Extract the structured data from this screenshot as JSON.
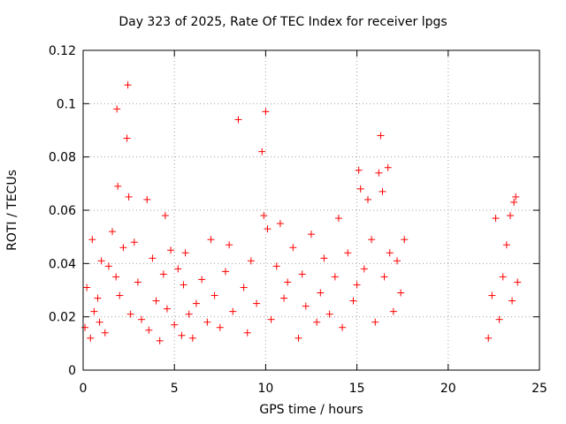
{
  "chart_data": {
    "type": "scatter",
    "title": "Day 323 of 2025, Rate Of TEC Index for receiver lpgs",
    "xlabel": "GPS time / hours",
    "ylabel": "ROTI / TECUs",
    "xlim": [
      0,
      25
    ],
    "ylim": [
      0,
      0.12
    ],
    "xticks": [
      "0",
      "5",
      "10",
      "15",
      "20",
      "25"
    ],
    "yticks": [
      "0",
      "0.02",
      "0.04",
      "0.06",
      "0.08",
      "0.1",
      "0.12"
    ],
    "grid": true,
    "marker": "+",
    "color": "#ff0000",
    "series": [
      {
        "name": "",
        "x": [
          0.1,
          0.2,
          0.4,
          0.5,
          0.6,
          0.8,
          0.9,
          1.0,
          1.2,
          1.4,
          1.6,
          1.8,
          1.85,
          1.9,
          2.0,
          2.2,
          2.4,
          2.45,
          2.5,
          2.6,
          2.8,
          3.0,
          3.2,
          3.5,
          3.6,
          3.8,
          4.0,
          4.2,
          4.4,
          4.5,
          4.6,
          4.8,
          5.0,
          5.2,
          5.4,
          5.5,
          5.6,
          5.8,
          6.0,
          6.2,
          6.5,
          6.8,
          7.0,
          7.2,
          7.5,
          7.8,
          8.0,
          8.2,
          8.5,
          8.8,
          9.0,
          9.2,
          9.5,
          9.8,
          9.9,
          10.0,
          10.1,
          10.3,
          10.6,
          10.8,
          11.0,
          11.2,
          11.5,
          11.8,
          12.0,
          12.2,
          12.5,
          12.8,
          13.0,
          13.2,
          13.5,
          13.8,
          14.0,
          14.2,
          14.5,
          14.8,
          15.0,
          15.1,
          15.2,
          15.4,
          15.6,
          15.8,
          16.0,
          16.2,
          16.3,
          16.4,
          16.5,
          16.7,
          16.8,
          17.0,
          17.2,
          17.4,
          17.6,
          22.2,
          22.4,
          22.6,
          22.8,
          23.0,
          23.2,
          23.4,
          23.5,
          23.6,
          23.7,
          23.8
        ],
        "y": [
          0.016,
          0.031,
          0.012,
          0.049,
          0.022,
          0.027,
          0.018,
          0.041,
          0.014,
          0.039,
          0.052,
          0.035,
          0.098,
          0.069,
          0.028,
          0.046,
          0.087,
          0.107,
          0.065,
          0.021,
          0.048,
          0.033,
          0.019,
          0.064,
          0.015,
          0.042,
          0.026,
          0.011,
          0.036,
          0.058,
          0.023,
          0.045,
          0.017,
          0.038,
          0.013,
          0.032,
          0.044,
          0.021,
          0.012,
          0.025,
          0.034,
          0.018,
          0.049,
          0.028,
          0.016,
          0.037,
          0.047,
          0.022,
          0.094,
          0.031,
          0.014,
          0.041,
          0.025,
          0.082,
          0.058,
          0.097,
          0.053,
          0.019,
          0.039,
          0.055,
          0.027,
          0.033,
          0.046,
          0.012,
          0.036,
          0.024,
          0.051,
          0.018,
          0.029,
          0.042,
          0.021,
          0.035,
          0.057,
          0.016,
          0.044,
          0.026,
          0.032,
          0.075,
          0.068,
          0.038,
          0.064,
          0.049,
          0.018,
          0.074,
          0.088,
          0.067,
          0.035,
          0.076,
          0.044,
          0.022,
          0.041,
          0.029,
          0.049,
          0.012,
          0.028,
          0.057,
          0.019,
          0.035,
          0.047,
          0.058,
          0.026,
          0.063,
          0.065,
          0.033
        ]
      }
    ]
  }
}
